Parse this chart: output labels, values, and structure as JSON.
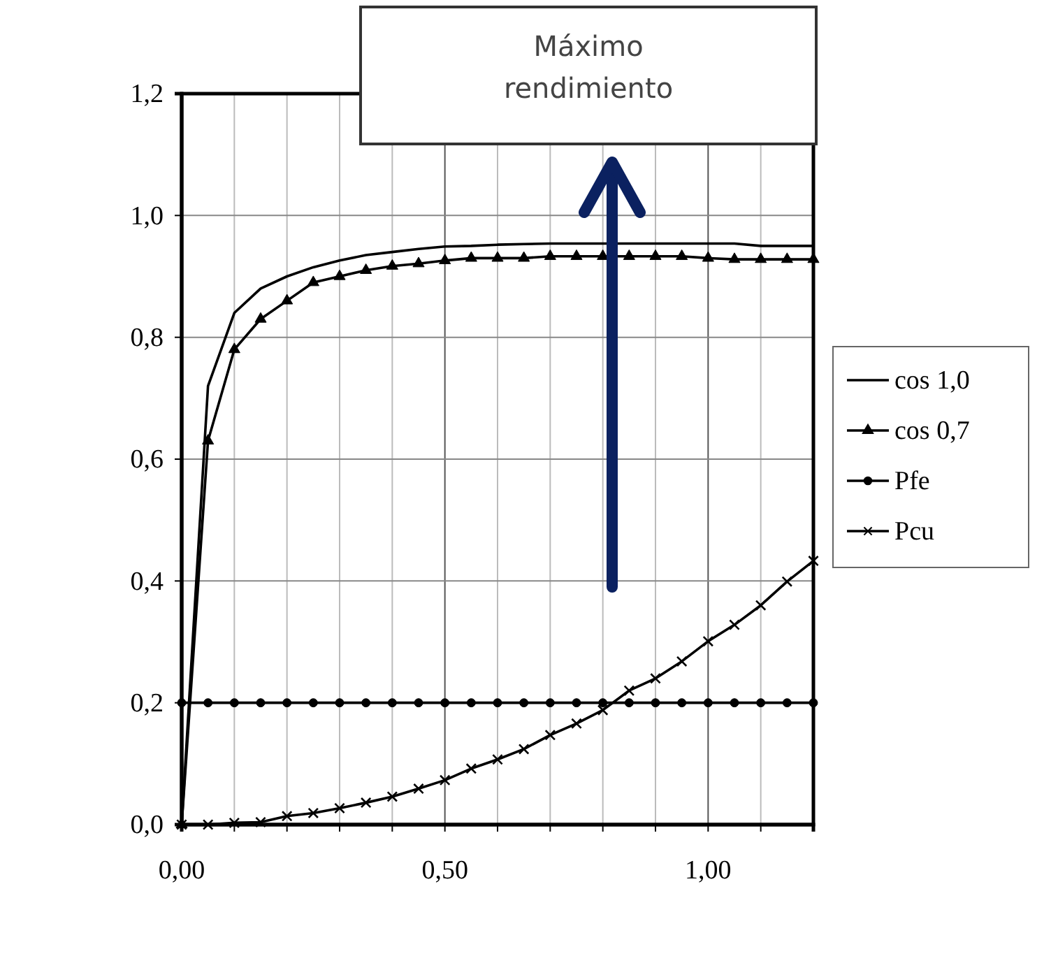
{
  "chart_data": {
    "type": "line",
    "annotations": [
      "Máximo rendimiento"
    ],
    "xlim": [
      0,
      1.2
    ],
    "xticks": [
      {
        "value": 0,
        "label": "0,00"
      },
      {
        "value": 0.1,
        "label": null
      },
      {
        "value": 0.2,
        "label": null
      },
      {
        "value": 0.3,
        "label": null
      },
      {
        "value": 0.4,
        "label": null
      },
      {
        "value": 0.5,
        "label": "0,50"
      },
      {
        "value": 0.6,
        "label": null
      },
      {
        "value": 0.7,
        "label": null
      },
      {
        "value": 0.8,
        "label": null
      },
      {
        "value": 0.9,
        "label": null
      },
      {
        "value": 1.0,
        "label": "1,00"
      },
      {
        "value": 1.1,
        "label": null
      }
    ],
    "ylim": [
      0,
      1.2
    ],
    "yticks": [
      {
        "value": 0,
        "label": "0,0"
      },
      {
        "value": 0.2,
        "label": "0,2"
      },
      {
        "value": 0.4,
        "label": "0,4"
      },
      {
        "value": 0.6,
        "label": "0,6"
      },
      {
        "value": 0.8,
        "label": "0,8"
      },
      {
        "value": 1.0,
        "label": "1,0"
      },
      {
        "value": 1.2,
        "label": "1,2"
      }
    ],
    "grid": true,
    "legend": "right",
    "x": [
      0,
      0.05,
      0.1,
      0.15,
      0.2,
      0.25,
      0.3,
      0.35,
      0.4,
      0.45,
      0.5,
      0.55,
      0.6,
      0.65,
      0.7,
      0.75,
      0.8,
      0.85,
      0.9,
      0.95,
      1.0,
      1.05,
      1.1,
      1.15,
      1.2
    ],
    "series": [
      {
        "name": "cos 1,0",
        "color": "#000000",
        "marker": "none",
        "values": [
          0,
          0.72,
          0.84,
          0.88,
          0.9,
          0.915,
          0.926,
          0.935,
          0.94,
          0.945,
          0.949,
          0.95,
          0.952,
          0.953,
          0.954,
          0.954,
          0.954,
          0.954,
          0.954,
          0.954,
          0.954,
          0.954,
          0.95,
          0.95,
          0.95
        ]
      },
      {
        "name": "cos 0,7",
        "color": "#000000",
        "marker": "triangle",
        "values": [
          0,
          0.63,
          0.78,
          0.83,
          0.86,
          0.89,
          0.9,
          0.91,
          0.917,
          0.921,
          0.926,
          0.93,
          0.93,
          0.93,
          0.933,
          0.933,
          0.933,
          0.933,
          0.933,
          0.933,
          0.93,
          0.928,
          0.928,
          0.928,
          0.928
        ]
      },
      {
        "name": "Pfe",
        "color": "#000000",
        "marker": "circle",
        "values": [
          0.2,
          0.2,
          0.2,
          0.2,
          0.2,
          0.2,
          0.2,
          0.2,
          0.2,
          0.2,
          0.2,
          0.2,
          0.2,
          0.2,
          0.2,
          0.2,
          0.2,
          0.2,
          0.2,
          0.2,
          0.2,
          0.2,
          0.2,
          0.2,
          0.2
        ]
      },
      {
        "name": "Pcu",
        "color": "#000000",
        "marker": "cross",
        "values": [
          0,
          0,
          0.003,
          0.004,
          0.014,
          0.019,
          0.027,
          0.036,
          0.046,
          0.059,
          0.073,
          0.092,
          0.107,
          0.124,
          0.147,
          0.166,
          0.188,
          0.22,
          0.24,
          0.268,
          0.301,
          0.328,
          0.36,
          0.399,
          0.433
        ]
      }
    ]
  }
}
